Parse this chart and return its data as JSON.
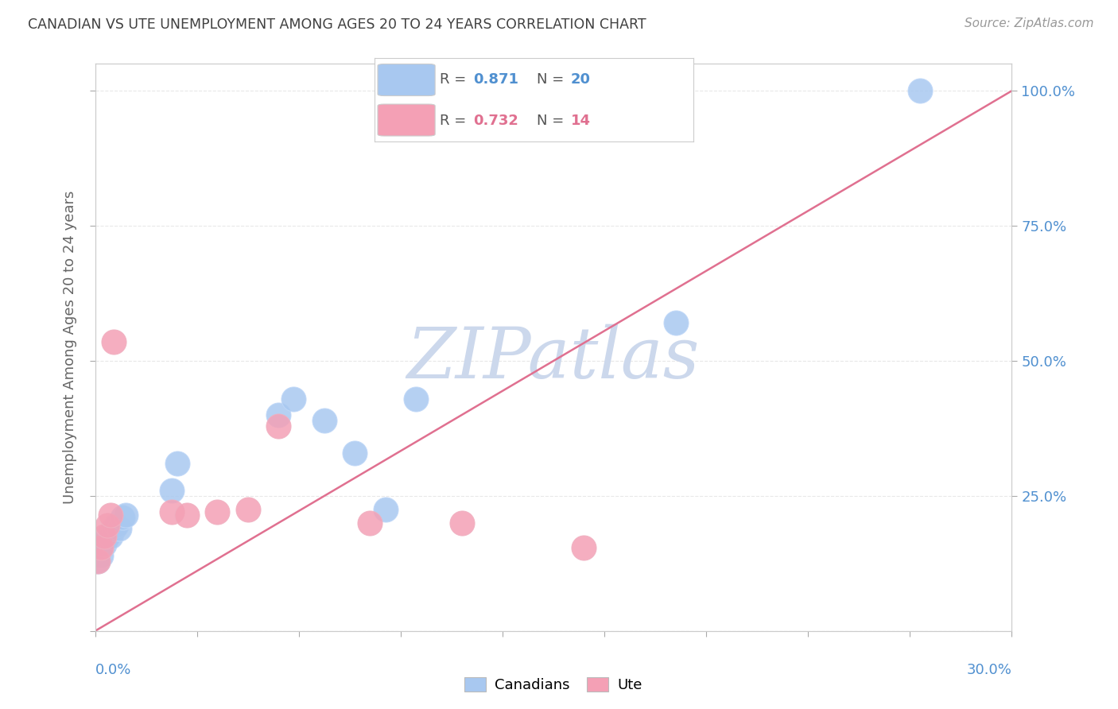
{
  "title": "CANADIAN VS UTE UNEMPLOYMENT AMONG AGES 20 TO 24 YEARS CORRELATION CHART",
  "source": "Source: ZipAtlas.com",
  "ylabel": "Unemployment Among Ages 20 to 24 years",
  "legend_label1": "Canadians",
  "legend_label2": "Ute",
  "R1": "0.871",
  "N1": "20",
  "R2": "0.732",
  "N2": "14",
  "canadian_x": [
    0.001,
    0.002,
    0.003,
    0.004,
    0.005,
    0.006,
    0.007,
    0.008,
    0.009,
    0.01,
    0.025,
    0.027,
    0.06,
    0.065,
    0.075,
    0.085,
    0.095,
    0.105,
    0.19,
    0.27
  ],
  "canadian_y": [
    0.13,
    0.14,
    0.16,
    0.175,
    0.175,
    0.19,
    0.195,
    0.19,
    0.21,
    0.215,
    0.26,
    0.31,
    0.4,
    0.43,
    0.39,
    0.33,
    0.225,
    0.43,
    0.57,
    1.0
  ],
  "ute_x": [
    0.001,
    0.002,
    0.003,
    0.004,
    0.005,
    0.006,
    0.025,
    0.03,
    0.04,
    0.05,
    0.06,
    0.09,
    0.12,
    0.16
  ],
  "ute_y": [
    0.13,
    0.155,
    0.175,
    0.195,
    0.215,
    0.535,
    0.22,
    0.215,
    0.22,
    0.225,
    0.38,
    0.2,
    0.2,
    0.155
  ],
  "line_x": [
    0.0,
    0.3
  ],
  "line_y": [
    0.0,
    1.0
  ],
  "blue_color": "#a8c8f0",
  "pink_color": "#f4a0b5",
  "line_color": "#e07090",
  "bg_color": "#ffffff",
  "watermark_color": "#ccd8ec",
  "title_color": "#404040",
  "axis_label_color": "#5090d0",
  "grid_color": "#e8e8e8",
  "ylabel_color": "#666666",
  "xtick_label_left": "0.0%",
  "xtick_label_right": "30.0%",
  "ytick_labels_right": [
    "25.0%",
    "50.0%",
    "75.0%",
    "100.0%"
  ],
  "ytick_values_right": [
    0.25,
    0.5,
    0.75,
    1.0
  ],
  "xmin": 0.0,
  "xmax": 0.3,
  "ymin": 0.0,
  "ymax": 1.05
}
